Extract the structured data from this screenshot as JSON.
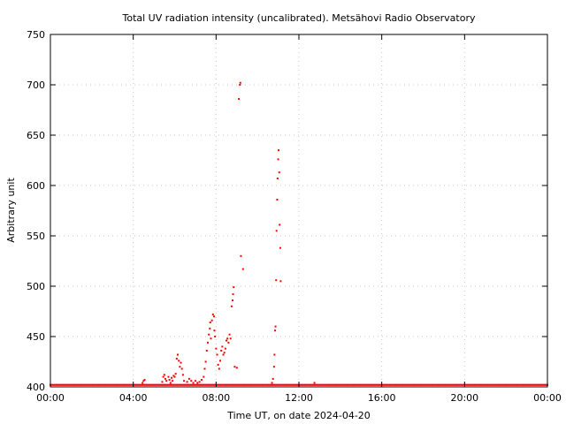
{
  "chart_data": {
    "type": "scatter",
    "title": "Total UV radiation intensity (uncalibrated). Metsähovi Radio Observatory",
    "xlabel": "Time UT, on date 2024-04-20",
    "ylabel": "Arbitrary unit",
    "xlim": [
      0,
      24
    ],
    "ylim": [
      400,
      750
    ],
    "grid": true,
    "x_ticks": [
      {
        "value": 0,
        "label": "00:00"
      },
      {
        "value": 4,
        "label": "04:00"
      },
      {
        "value": 8,
        "label": "08:00"
      },
      {
        "value": 12,
        "label": "12:00"
      },
      {
        "value": 16,
        "label": "16:00"
      },
      {
        "value": 20,
        "label": "20:00"
      },
      {
        "value": 24,
        "label": "00:00"
      }
    ],
    "y_ticks": [
      400,
      450,
      500,
      550,
      600,
      650,
      700,
      750
    ],
    "marker_color": "#ff0000",
    "series": [
      {
        "baseline": {
          "value": 402,
          "x_start": 0,
          "x_end": 24,
          "step": 0.05
        },
        "points": [
          {
            "x": 4.45,
            "y": 404
          },
          {
            "x": 4.5,
            "y": 406
          },
          {
            "x": 4.55,
            "y": 407
          },
          {
            "x": 5.4,
            "y": 405
          },
          {
            "x": 5.45,
            "y": 410
          },
          {
            "x": 5.5,
            "y": 412
          },
          {
            "x": 5.55,
            "y": 408
          },
          {
            "x": 5.6,
            "y": 406
          },
          {
            "x": 5.7,
            "y": 410
          },
          {
            "x": 5.75,
            "y": 407
          },
          {
            "x": 5.8,
            "y": 404
          },
          {
            "x": 5.85,
            "y": 409
          },
          {
            "x": 5.9,
            "y": 406
          },
          {
            "x": 5.95,
            "y": 411
          },
          {
            "x": 6.0,
            "y": 410
          },
          {
            "x": 6.05,
            "y": 413
          },
          {
            "x": 6.1,
            "y": 428
          },
          {
            "x": 6.15,
            "y": 432
          },
          {
            "x": 6.2,
            "y": 426
          },
          {
            "x": 6.25,
            "y": 420
          },
          {
            "x": 6.3,
            "y": 424
          },
          {
            "x": 6.35,
            "y": 418
          },
          {
            "x": 6.4,
            "y": 412
          },
          {
            "x": 6.45,
            "y": 406
          },
          {
            "x": 6.6,
            "y": 405
          },
          {
            "x": 6.7,
            "y": 408
          },
          {
            "x": 6.8,
            "y": 406
          },
          {
            "x": 6.9,
            "y": 404
          },
          {
            "x": 7.0,
            "y": 406
          },
          {
            "x": 7.1,
            "y": 404
          },
          {
            "x": 7.2,
            "y": 405
          },
          {
            "x": 7.3,
            "y": 407
          },
          {
            "x": 7.4,
            "y": 410
          },
          {
            "x": 7.45,
            "y": 418
          },
          {
            "x": 7.5,
            "y": 425
          },
          {
            "x": 7.55,
            "y": 436
          },
          {
            "x": 7.6,
            "y": 444
          },
          {
            "x": 7.65,
            "y": 452
          },
          {
            "x": 7.7,
            "y": 458
          },
          {
            "x": 7.72,
            "y": 464
          },
          {
            "x": 7.75,
            "y": 448
          },
          {
            "x": 7.8,
            "y": 466
          },
          {
            "x": 7.85,
            "y": 472
          },
          {
            "x": 7.9,
            "y": 470
          },
          {
            "x": 7.92,
            "y": 456
          },
          {
            "x": 7.95,
            "y": 450
          },
          {
            "x": 8.0,
            "y": 438
          },
          {
            "x": 8.05,
            "y": 432
          },
          {
            "x": 8.1,
            "y": 422
          },
          {
            "x": 8.15,
            "y": 418
          },
          {
            "x": 8.2,
            "y": 426
          },
          {
            "x": 8.25,
            "y": 436
          },
          {
            "x": 8.3,
            "y": 440
          },
          {
            "x": 8.35,
            "y": 432
          },
          {
            "x": 8.4,
            "y": 434
          },
          {
            "x": 8.45,
            "y": 438
          },
          {
            "x": 8.5,
            "y": 446
          },
          {
            "x": 8.55,
            "y": 448
          },
          {
            "x": 8.6,
            "y": 444
          },
          {
            "x": 8.65,
            "y": 452
          },
          {
            "x": 8.7,
            "y": 448
          },
          {
            "x": 8.75,
            "y": 480
          },
          {
            "x": 8.8,
            "y": 486
          },
          {
            "x": 8.82,
            "y": 492
          },
          {
            "x": 8.85,
            "y": 499
          },
          {
            "x": 8.9,
            "y": 420
          },
          {
            "x": 9.0,
            "y": 419
          },
          {
            "x": 9.1,
            "y": 686
          },
          {
            "x": 9.15,
            "y": 700
          },
          {
            "x": 9.17,
            "y": 702
          },
          {
            "x": 9.2,
            "y": 530
          },
          {
            "x": 9.3,
            "y": 517
          },
          {
            "x": 10.7,
            "y": 404
          },
          {
            "x": 10.75,
            "y": 408
          },
          {
            "x": 10.8,
            "y": 420
          },
          {
            "x": 10.82,
            "y": 432
          },
          {
            "x": 10.85,
            "y": 456
          },
          {
            "x": 10.87,
            "y": 460
          },
          {
            "x": 10.9,
            "y": 506
          },
          {
            "x": 10.92,
            "y": 555
          },
          {
            "x": 10.95,
            "y": 586
          },
          {
            "x": 10.97,
            "y": 607
          },
          {
            "x": 11.0,
            "y": 626
          },
          {
            "x": 11.02,
            "y": 635
          },
          {
            "x": 11.05,
            "y": 613
          },
          {
            "x": 11.07,
            "y": 561
          },
          {
            "x": 11.1,
            "y": 538
          },
          {
            "x": 11.12,
            "y": 505
          },
          {
            "x": 12.75,
            "y": 404
          }
        ]
      }
    ]
  }
}
